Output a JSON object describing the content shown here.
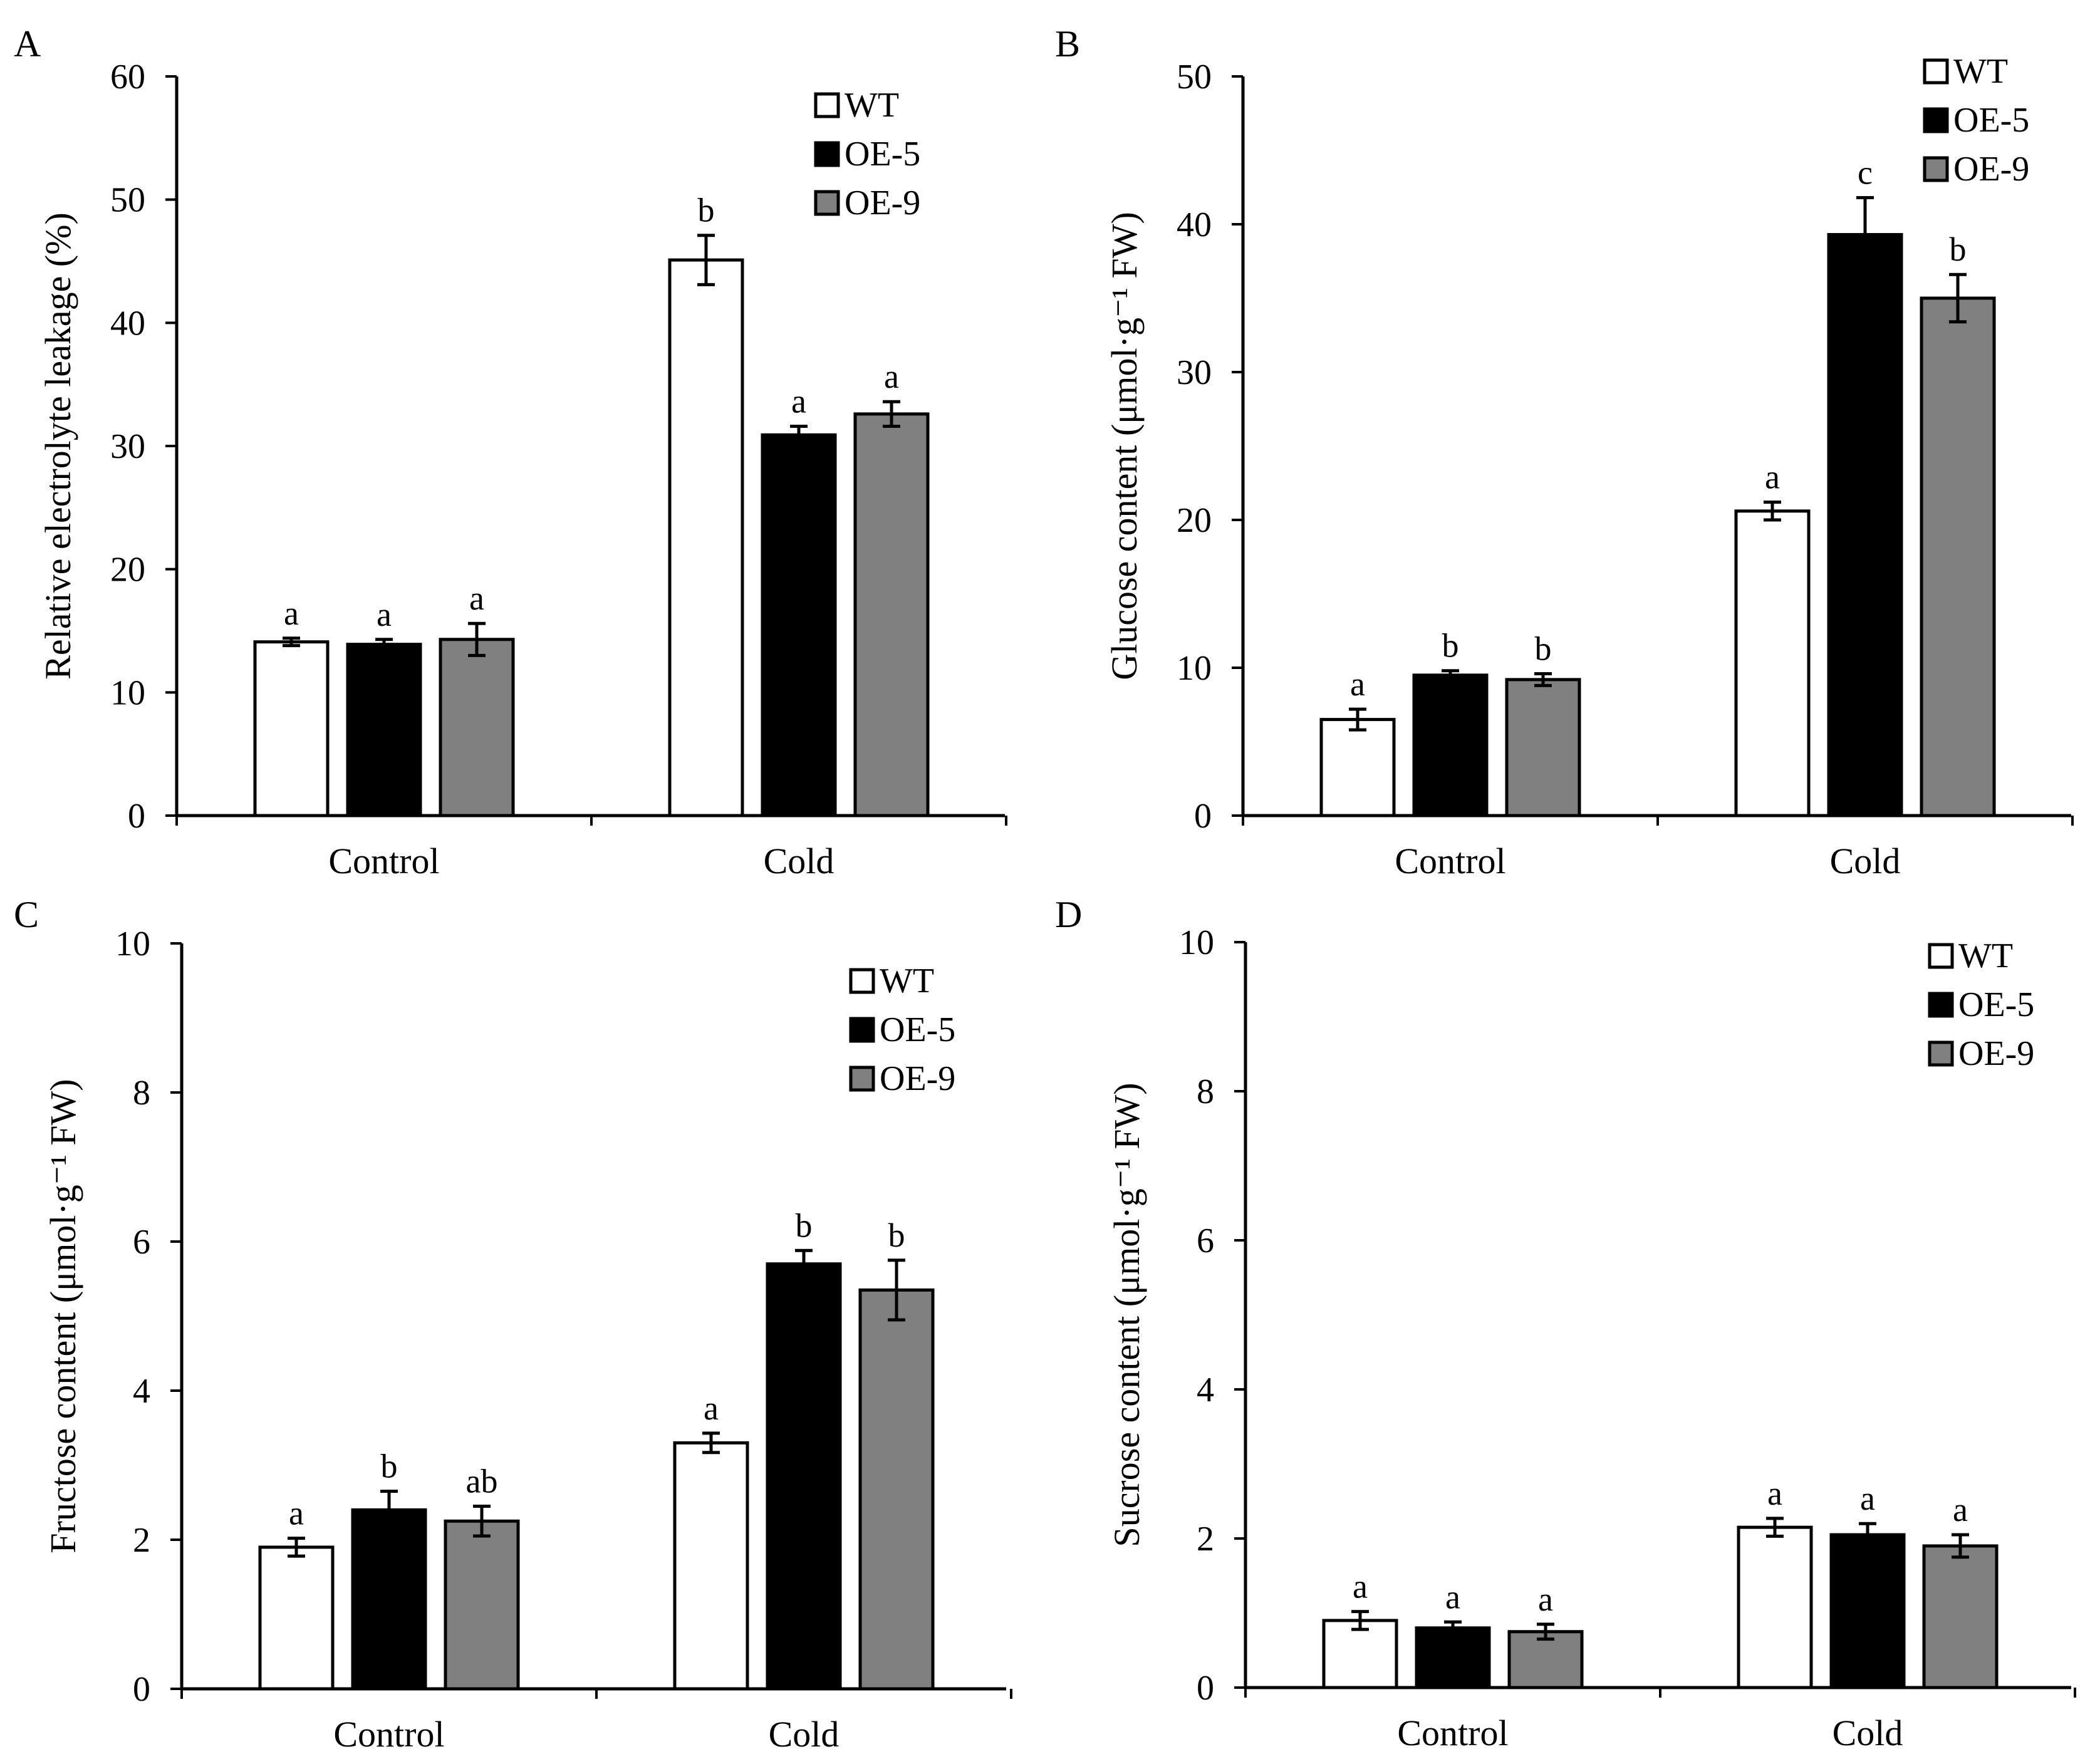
{
  "figure": {
    "colors": {
      "WT": "#ffffff",
      "OE-5": "#000000",
      "OE-9": "#808080",
      "stroke": "#000000"
    },
    "legend": [
      "WT",
      "OE-5",
      "OE-9"
    ]
  },
  "chart_data": [
    {
      "panel": "A",
      "type": "bar",
      "categories": [
        "Control",
        "Cold"
      ],
      "ylabel": "Relative electrolyte leakage (%)",
      "ylim": [
        0,
        60
      ],
      "yticks": [
        "0",
        "10",
        "20",
        "30",
        "40",
        "50",
        "60"
      ],
      "series": [
        {
          "name": "WT",
          "values": [
            14.1,
            45.1
          ],
          "errors": [
            0.3,
            2.0
          ],
          "letters": [
            "a",
            "b"
          ]
        },
        {
          "name": "OE-5",
          "values": [
            13.9,
            30.9
          ],
          "errors": [
            0.4,
            0.7
          ],
          "letters": [
            "a",
            "a"
          ]
        },
        {
          "name": "OE-9",
          "values": [
            14.3,
            32.6
          ],
          "errors": [
            1.3,
            1.0
          ],
          "letters": [
            "a",
            "a"
          ]
        }
      ]
    },
    {
      "panel": "B",
      "type": "bar",
      "categories": [
        "Control",
        "Cold"
      ],
      "ylabel": "Glucose content (μmol·g⁻¹ FW)",
      "ylim": [
        0,
        50
      ],
      "yticks": [
        "0",
        "10",
        "20",
        "30",
        "40",
        "50"
      ],
      "series": [
        {
          "name": "WT",
          "values": [
            6.5,
            20.6
          ],
          "errors": [
            0.7,
            0.6
          ],
          "letters": [
            "a",
            "a"
          ]
        },
        {
          "name": "OE-5",
          "values": [
            9.5,
            39.3
          ],
          "errors": [
            0.3,
            2.5
          ],
          "letters": [
            "b",
            "c"
          ]
        },
        {
          "name": "OE-9",
          "values": [
            9.2,
            35.0
          ],
          "errors": [
            0.4,
            1.6
          ],
          "letters": [
            "b",
            "b"
          ]
        }
      ]
    },
    {
      "panel": "C",
      "type": "bar",
      "categories": [
        "Control",
        "Cold"
      ],
      "ylabel": "Fructose content (μmol·g⁻¹ FW)",
      "ylim": [
        0,
        10
      ],
      "yticks": [
        "0",
        "2",
        "4",
        "6",
        "8",
        "10"
      ],
      "series": [
        {
          "name": "WT",
          "values": [
            1.9,
            3.3
          ],
          "errors": [
            0.12,
            0.13
          ],
          "letters": [
            "a",
            "a"
          ]
        },
        {
          "name": "OE-5",
          "values": [
            2.4,
            5.7
          ],
          "errors": [
            0.25,
            0.18
          ],
          "letters": [
            "b",
            "b"
          ]
        },
        {
          "name": "OE-9",
          "values": [
            2.25,
            5.35
          ],
          "errors": [
            0.2,
            0.4
          ],
          "letters": [
            "ab",
            "b"
          ]
        }
      ]
    },
    {
      "panel": "D",
      "type": "bar",
      "categories": [
        "Control",
        "Cold"
      ],
      "ylabel": "Sucrose content (μmol·g⁻¹ FW)",
      "ylim": [
        0,
        10
      ],
      "yticks": [
        "0",
        "2",
        "4",
        "6",
        "8",
        "10"
      ],
      "series": [
        {
          "name": "WT",
          "values": [
            0.9,
            2.15
          ],
          "errors": [
            0.12,
            0.12
          ],
          "letters": [
            "a",
            "a"
          ]
        },
        {
          "name": "OE-5",
          "values": [
            0.8,
            2.05
          ],
          "errors": [
            0.08,
            0.15
          ],
          "letters": [
            "a",
            "a"
          ]
        },
        {
          "name": "OE-9",
          "values": [
            0.75,
            1.9
          ],
          "errors": [
            0.1,
            0.15
          ],
          "letters": [
            "a",
            "a"
          ]
        }
      ]
    }
  ]
}
